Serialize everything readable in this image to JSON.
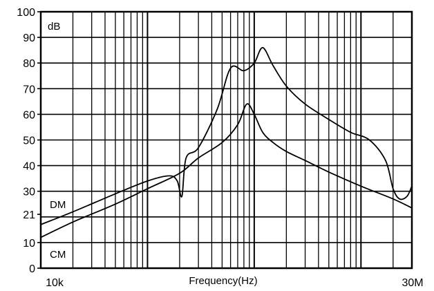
{
  "chart_data": {
    "type": "line",
    "xscale": "log",
    "xlim": [
      10000,
      30000000
    ],
    "ylim": [
      0,
      100
    ],
    "xlabel": "Frequency(Hz)",
    "ylabel": "",
    "unit_label": "dB",
    "x_tick_labels": [
      "10k",
      "30M"
    ],
    "y_ticks": [
      {
        "value": 0,
        "label": "0"
      },
      {
        "value": 10,
        "label": "10"
      },
      {
        "value": 21,
        "label": "21"
      },
      {
        "value": 30,
        "label": "30"
      },
      {
        "value": 40,
        "label": "40"
      },
      {
        "value": 50,
        "label": "50"
      },
      {
        "value": 60,
        "label": "60"
      },
      {
        "value": 70,
        "label": "70"
      },
      {
        "value": 80,
        "label": "80"
      },
      {
        "value": 90,
        "label": "90"
      },
      {
        "value": 100,
        "label": "100"
      }
    ],
    "grid": true,
    "series": [
      {
        "name": "DM",
        "x": [
          10000,
          20000,
          50000,
          100000,
          160000,
          190000,
          210000,
          230000,
          300000,
          450000,
          600000,
          800000,
          1000000,
          1200000,
          1500000,
          2000000,
          3000000,
          5000000,
          8000000,
          12000000,
          17000000,
          20000000,
          23000000,
          27000000,
          30000000
        ],
        "y": [
          17,
          22,
          29,
          34,
          36,
          34,
          28,
          43,
          47,
          62,
          78,
          77,
          80,
          86,
          79,
          71,
          64,
          58,
          53,
          50,
          42,
          31,
          27,
          28,
          32
        ]
      },
      {
        "name": "CM",
        "x": [
          10000,
          20000,
          50000,
          100000,
          200000,
          300000,
          500000,
          700000,
          850000,
          1000000,
          1200000,
          1500000,
          2000000,
          3000000,
          5000000,
          10000000,
          20000000,
          30000000
        ],
        "y": [
          12,
          18,
          25,
          31,
          37,
          43,
          49,
          56,
          64,
          60,
          53,
          49,
          45.5,
          42,
          37.5,
          32,
          27,
          23.5
        ]
      }
    ]
  },
  "labels": {
    "unit": "dB",
    "dm": "DM",
    "cm": "CM",
    "x_axis": "Frequency(Hz)",
    "x_min": "10k",
    "x_max": "30M"
  }
}
